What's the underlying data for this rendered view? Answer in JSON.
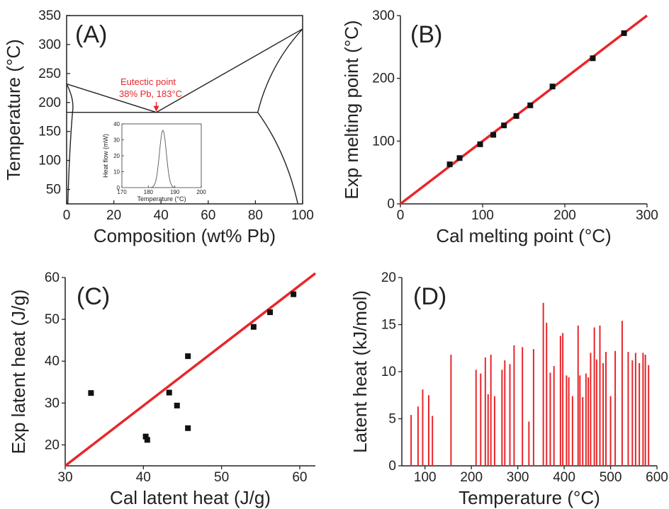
{
  "colors": {
    "fit_line": "#e8262a",
    "marker": "#111111",
    "annotation": "#e8262a"
  },
  "chart_data": [
    {
      "id": "A",
      "type": "line",
      "panel_label": "(A)",
      "xlabel": "Composition (wt% Pb)",
      "ylabel": "Temperature (°C)",
      "xlim": [
        0,
        100
      ],
      "ylim": [
        25,
        350
      ],
      "x_ticks": [
        "0",
        "20",
        "40",
        "60",
        "80",
        "100"
      ],
      "y_ticks": [
        "50",
        "100",
        "150",
        "200",
        "250",
        "300",
        "350"
      ],
      "series": [
        {
          "x": [
            0,
            38,
            100
          ],
          "y": [
            232,
            183,
            327
          ]
        },
        {
          "x": [
            0,
            81
          ],
          "y": [
            183,
            183
          ]
        },
        {
          "x": [
            0,
            2.5,
            1.5,
            0.5
          ],
          "y": [
            232,
            183,
            80,
            25
          ]
        },
        {
          "x": [
            100,
            81,
            90,
            98
          ],
          "y": [
            327,
            183,
            100,
            25
          ]
        }
      ],
      "annotation": {
        "lines": [
          "Eutectic point",
          "38% Pb, 183°C"
        ],
        "x": 38,
        "y": 183
      },
      "inset": {
        "type": "line",
        "xlabel": "Temperature (°C)",
        "ylabel": "Heat flow (mW)",
        "xlim": [
          170,
          200
        ],
        "ylim": [
          0,
          40
        ],
        "x_ticks": [
          "170",
          "180",
          "190",
          "200"
        ],
        "y_ticks": [
          "0",
          "10",
          "20",
          "30",
          "40"
        ],
        "peak": {
          "center": 185.5,
          "height": 36,
          "sigma": 1.3
        }
      }
    },
    {
      "id": "B",
      "type": "scatter",
      "panel_label": "(B)",
      "xlabel": "Cal melting point (°C)",
      "ylabel": "Exp melting point (°C)",
      "xlim": [
        0,
        300
      ],
      "ylim": [
        0,
        300
      ],
      "x_ticks": [
        "0",
        "100",
        "200",
        "300"
      ],
      "y_ticks": [
        "0",
        "100",
        "200",
        "300"
      ],
      "points": [
        [
          60,
          63
        ],
        [
          72,
          73
        ],
        [
          97,
          95
        ],
        [
          113,
          110
        ],
        [
          126,
          125
        ],
        [
          141,
          140
        ],
        [
          158,
          157
        ],
        [
          185,
          187
        ],
        [
          234,
          232
        ],
        [
          272,
          272
        ]
      ],
      "fit_line": [
        [
          0,
          0
        ],
        [
          300,
          300
        ]
      ]
    },
    {
      "id": "C",
      "type": "scatter",
      "panel_label": "(C)",
      "xlabel": "Cal latent heat (J/g)",
      "ylabel": "Exp latent heat (J/g)",
      "xlim": [
        30,
        62
      ],
      "ylim": [
        15,
        60
      ],
      "x_ticks": [
        "30",
        "40",
        "50",
        "60"
      ],
      "y_ticks": [
        "20",
        "30",
        "40",
        "50",
        "60"
      ],
      "points": [
        [
          33.3,
          32.4
        ],
        [
          40.3,
          22.0
        ],
        [
          40.5,
          21.2
        ],
        [
          43.3,
          32.5
        ],
        [
          44.3,
          29.4
        ],
        [
          45.7,
          41.2
        ],
        [
          45.7,
          24.0
        ],
        [
          54.1,
          48.2
        ],
        [
          56.2,
          51.7
        ],
        [
          59.2,
          56.0
        ]
      ],
      "fit_line": [
        [
          30,
          15
        ],
        [
          62,
          61
        ]
      ]
    },
    {
      "id": "D",
      "type": "bar",
      "panel_label": "(D)",
      "xlabel": "Temperature (°C)",
      "ylabel": "Latent heat (kJ/mol)",
      "xlim": [
        50,
        600
      ],
      "ylim": [
        0,
        20
      ],
      "x_ticks": [
        "100",
        "200",
        "300",
        "400",
        "500",
        "600"
      ],
      "y_ticks": [
        "0",
        "5",
        "10",
        "15",
        "20"
      ],
      "bars": [
        [
          70,
          5.4
        ],
        [
          85,
          6.3
        ],
        [
          95,
          8.1
        ],
        [
          108,
          7.5
        ],
        [
          116,
          5.3
        ],
        [
          156,
          11.8
        ],
        [
          210,
          10.2
        ],
        [
          220,
          9.8
        ],
        [
          230,
          11.5
        ],
        [
          236,
          7.6
        ],
        [
          242,
          11.8
        ],
        [
          250,
          7.4
        ],
        [
          266,
          10.2
        ],
        [
          272,
          11.2
        ],
        [
          283,
          10.8
        ],
        [
          292,
          12.8
        ],
        [
          310,
          12.6
        ],
        [
          324,
          4.7
        ],
        [
          334,
          12.4
        ],
        [
          355,
          17.3
        ],
        [
          362,
          15.2
        ],
        [
          370,
          9.9
        ],
        [
          378,
          10.6
        ],
        [
          392,
          13.8
        ],
        [
          397,
          14.1
        ],
        [
          405,
          9.6
        ],
        [
          410,
          9.4
        ],
        [
          418,
          7.4
        ],
        [
          430,
          14.9
        ],
        [
          434,
          9.6
        ],
        [
          440,
          7.3
        ],
        [
          447,
          9.8
        ],
        [
          452,
          9.4
        ],
        [
          457,
          12.0
        ],
        [
          465,
          14.7
        ],
        [
          470,
          11.3
        ],
        [
          477,
          14.9
        ],
        [
          484,
          10.9
        ],
        [
          490,
          12.1
        ],
        [
          500,
          7.4
        ],
        [
          510,
          12.2
        ],
        [
          525,
          15.4
        ],
        [
          538,
          12.1
        ],
        [
          547,
          11.2
        ],
        [
          554,
          12.0
        ],
        [
          562,
          10.9
        ],
        [
          570,
          12.0
        ],
        [
          575,
          11.8
        ],
        [
          582,
          10.7
        ]
      ]
    }
  ]
}
